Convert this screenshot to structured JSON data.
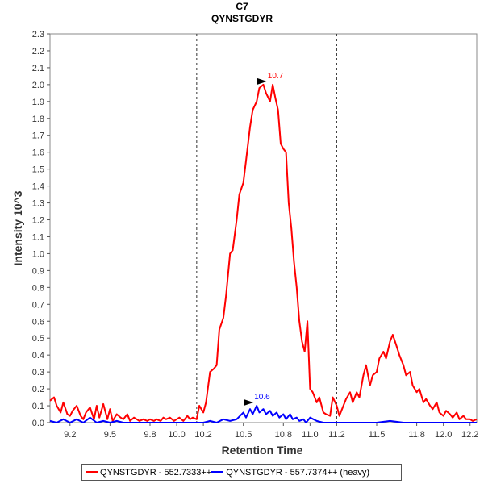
{
  "chart_data": {
    "type": "line",
    "title": "C7",
    "subtitle": "QYNSTGDYR",
    "xlabel": "Retention Time",
    "ylabel": "Intensity 10^3",
    "xlim": [
      9.05,
      12.25
    ],
    "ylim": [
      0,
      2.3
    ],
    "x_ticks": [
      "9.2",
      "9.5",
      "9.8",
      "10.0",
      "10.2",
      "10.5",
      "10.8",
      "11.0",
      "11.2",
      "11.5",
      "11.8",
      "12.0",
      "12.2"
    ],
    "x_tick_values": [
      9.2,
      9.5,
      9.8,
      10.0,
      10.2,
      10.5,
      10.8,
      11.0,
      11.2,
      11.5,
      11.8,
      12.0,
      12.2
    ],
    "y_ticks": [
      "0.0",
      "0.1",
      "0.2",
      "0.3",
      "0.4",
      "0.5",
      "0.6",
      "0.7",
      "0.8",
      "0.9",
      "1.0",
      "1.1",
      "1.2",
      "1.3",
      "1.4",
      "1.5",
      "1.6",
      "1.7",
      "1.8",
      "1.9",
      "2.0",
      "2.1",
      "2.2",
      "2.3"
    ],
    "integration_bounds": [
      10.15,
      11.2
    ],
    "grid": false,
    "legend_position": "bottom",
    "series": [
      {
        "name": "QYNSTGDYR - 552.7333++",
        "color": "#ff0000",
        "peak_label": "10.7",
        "peak_x": 10.7,
        "peak_y": 2.0,
        "x": [
          9.05,
          9.08,
          9.1,
          9.13,
          9.15,
          9.18,
          9.2,
          9.22,
          9.25,
          9.28,
          9.3,
          9.32,
          9.35,
          9.38,
          9.4,
          9.42,
          9.45,
          9.48,
          9.5,
          9.52,
          9.55,
          9.58,
          9.6,
          9.63,
          9.65,
          9.68,
          9.7,
          9.72,
          9.75,
          9.78,
          9.8,
          9.83,
          9.85,
          9.88,
          9.9,
          9.92,
          9.95,
          9.98,
          10.0,
          10.02,
          10.05,
          10.08,
          10.1,
          10.12,
          10.15,
          10.17,
          10.2,
          10.22,
          10.25,
          10.28,
          10.3,
          10.32,
          10.35,
          10.37,
          10.4,
          10.42,
          10.45,
          10.47,
          10.5,
          10.52,
          10.55,
          10.57,
          10.6,
          10.62,
          10.65,
          10.67,
          10.7,
          10.72,
          10.74,
          10.76,
          10.78,
          10.8,
          10.82,
          10.84,
          10.86,
          10.88,
          10.9,
          10.92,
          10.94,
          10.96,
          10.98,
          11.0,
          11.02,
          11.05,
          11.07,
          11.1,
          11.12,
          11.15,
          11.17,
          11.2,
          11.22,
          11.25,
          11.27,
          11.3,
          11.32,
          11.35,
          11.37,
          11.4,
          11.42,
          11.45,
          11.47,
          11.5,
          11.52,
          11.55,
          11.57,
          11.6,
          11.62,
          11.65,
          11.67,
          11.7,
          11.72,
          11.75,
          11.77,
          11.8,
          11.82,
          11.85,
          11.87,
          11.9,
          11.92,
          11.95,
          11.97,
          12.0,
          12.02,
          12.05,
          12.07,
          12.1,
          12.12,
          12.15,
          12.17,
          12.2,
          12.22,
          12.25
        ],
        "y": [
          0.13,
          0.15,
          0.1,
          0.06,
          0.12,
          0.05,
          0.04,
          0.07,
          0.1,
          0.04,
          0.02,
          0.06,
          0.09,
          0.02,
          0.1,
          0.03,
          0.11,
          0.02,
          0.08,
          0.01,
          0.05,
          0.03,
          0.02,
          0.05,
          0.01,
          0.03,
          0.02,
          0.01,
          0.02,
          0.01,
          0.02,
          0.01,
          0.02,
          0.01,
          0.03,
          0.02,
          0.03,
          0.01,
          0.02,
          0.03,
          0.01,
          0.04,
          0.02,
          0.03,
          0.02,
          0.1,
          0.06,
          0.12,
          0.3,
          0.32,
          0.34,
          0.55,
          0.62,
          0.75,
          1.0,
          1.02,
          1.2,
          1.35,
          1.42,
          1.55,
          1.75,
          1.85,
          1.9,
          1.98,
          2.0,
          1.95,
          1.9,
          2.0,
          1.92,
          1.85,
          1.65,
          1.62,
          1.6,
          1.3,
          1.15,
          0.95,
          0.8,
          0.6,
          0.48,
          0.42,
          0.6,
          0.2,
          0.18,
          0.12,
          0.15,
          0.06,
          0.05,
          0.04,
          0.15,
          0.1,
          0.04,
          0.1,
          0.14,
          0.18,
          0.12,
          0.18,
          0.15,
          0.28,
          0.34,
          0.22,
          0.28,
          0.3,
          0.38,
          0.42,
          0.38,
          0.48,
          0.52,
          0.45,
          0.4,
          0.34,
          0.28,
          0.3,
          0.22,
          0.18,
          0.2,
          0.12,
          0.14,
          0.1,
          0.08,
          0.12,
          0.06,
          0.04,
          0.07,
          0.05,
          0.03,
          0.06,
          0.02,
          0.04,
          0.02,
          0.02,
          0.01,
          0.02
        ]
      },
      {
        "name": "QYNSTGDYR - 557.7374++ (heavy)",
        "color": "#0000ff",
        "peak_label": "10.6",
        "peak_x": 10.6,
        "peak_y": 0.1,
        "x": [
          9.05,
          9.1,
          9.15,
          9.2,
          9.25,
          9.3,
          9.35,
          9.4,
          9.45,
          9.5,
          9.55,
          9.6,
          9.7,
          9.8,
          9.9,
          10.0,
          10.1,
          10.2,
          10.25,
          10.3,
          10.35,
          10.4,
          10.45,
          10.5,
          10.52,
          10.55,
          10.57,
          10.6,
          10.62,
          10.65,
          10.67,
          10.7,
          10.72,
          10.75,
          10.77,
          10.8,
          10.82,
          10.85,
          10.87,
          10.9,
          10.92,
          10.95,
          10.97,
          11.0,
          11.05,
          11.1,
          11.2,
          11.3,
          11.4,
          11.5,
          11.6,
          11.7,
          11.8,
          11.9,
          12.0,
          12.1,
          12.2,
          12.25
        ],
        "y": [
          0.01,
          0.0,
          0.02,
          0.0,
          0.02,
          0.0,
          0.03,
          0.0,
          0.01,
          0.0,
          0.01,
          0.0,
          0.0,
          0.0,
          0.0,
          0.0,
          0.0,
          0.0,
          0.01,
          0.0,
          0.02,
          0.01,
          0.02,
          0.06,
          0.03,
          0.08,
          0.05,
          0.1,
          0.06,
          0.08,
          0.05,
          0.07,
          0.04,
          0.06,
          0.03,
          0.05,
          0.02,
          0.05,
          0.02,
          0.03,
          0.01,
          0.02,
          0.0,
          0.03,
          0.01,
          0.0,
          0.0,
          0.0,
          0.0,
          0.0,
          0.01,
          0.0,
          0.0,
          0.0,
          0.0,
          0.0,
          0.0,
          0.0
        ]
      }
    ]
  }
}
